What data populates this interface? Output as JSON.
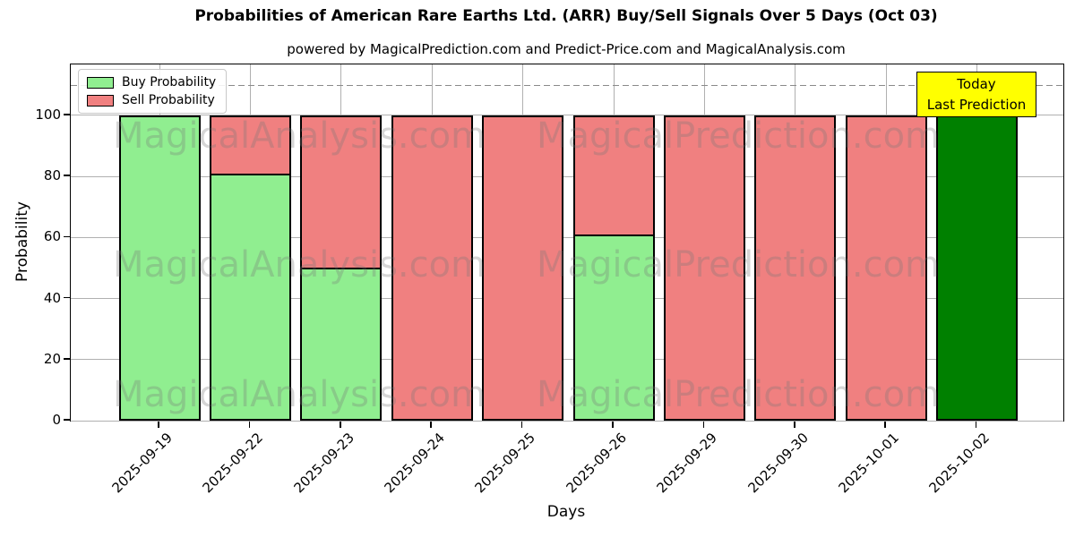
{
  "title": "Probabilities of American Rare Earths Ltd. (ARR) Buy/Sell Signals Over 5 Days (Oct 03)",
  "subtitle": "powered by MagicalPrediction.com and Predict-Price.com and MagicalAnalysis.com",
  "legend": {
    "buy_label": "Buy Probability",
    "sell_label": "Sell Probability"
  },
  "annotation_box": {
    "line1": "Today",
    "line2": "Last Prediction",
    "background": "#ffff00"
  },
  "axes": {
    "xlabel": "Days",
    "ylabel": "Probability",
    "yticks": [
      0,
      20,
      40,
      60,
      80,
      100
    ]
  },
  "watermarks": {
    "left_text": "MagicalAnalysis.com",
    "right_text": "MagicalPrediction.com"
  },
  "colors": {
    "buy": "#90EE90",
    "sell": "#F08080",
    "today_bar": "#008000",
    "bar_edge": "#000000",
    "grid": "#b0b0b0",
    "dashed_line": "#8a8a8a",
    "annotation_bg": "#ffff00"
  },
  "chart_data": {
    "type": "bar",
    "stacked": true,
    "title": "Probabilities of American Rare Earths Ltd. (ARR) Buy/Sell Signals Over 5 Days (Oct 03)",
    "xlabel": "Days",
    "ylabel": "Probability",
    "categories": [
      "2025-09-19",
      "2025-09-22",
      "2025-09-23",
      "2025-09-24",
      "2025-09-25",
      "2025-09-26",
      "2025-09-29",
      "2025-09-30",
      "2025-10-01",
      "2025-10-02"
    ],
    "series": [
      {
        "name": "Buy Probability",
        "color": "#90EE90",
        "values": [
          100,
          81,
          50,
          0,
          0,
          61,
          0,
          0,
          0,
          100
        ]
      },
      {
        "name": "Sell Probability",
        "color": "#F08080",
        "values": [
          0,
          19,
          50,
          100,
          100,
          39,
          100,
          100,
          100,
          0
        ]
      }
    ],
    "today_index": 9,
    "today_bar_color": "#008000",
    "dashed_line_y": 110,
    "ylim": [
      0,
      116.7
    ],
    "yticks": [
      0,
      20,
      40,
      60,
      80,
      100
    ],
    "grid": true,
    "legend_position": "upper left"
  }
}
